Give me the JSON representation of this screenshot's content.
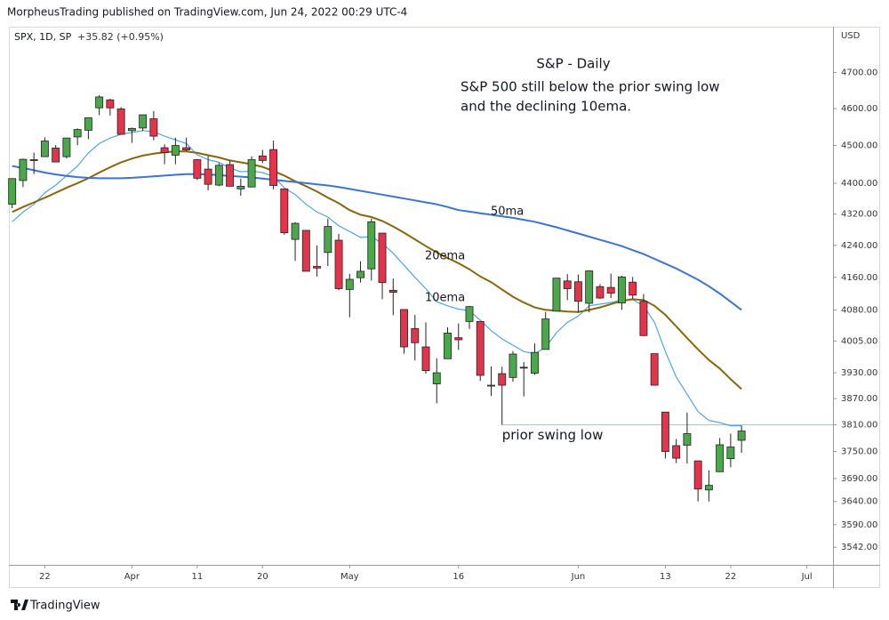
{
  "header": "MorpheusTrading published on TradingView.com, Jun 24, 2022 00:29 UTC-4",
  "footer": "TradingView",
  "chart_data": {
    "type": "candlestick",
    "title": "S&P - Daily",
    "annotations": [
      "S&P 500 still below the prior swing low",
      "and the declining 10ema."
    ],
    "legend": {
      "symbol": "SPX, 1D, SP",
      "change": "+35.82 (+0.95%)"
    },
    "currency": "USD",
    "x": [
      "Mar 17",
      "Mar 18",
      "Mar 21",
      "Mar 22",
      "Mar 23",
      "Mar 24",
      "Mar 25",
      "Mar 28",
      "Mar 29",
      "Mar 30",
      "Mar 31",
      "Apr 1",
      "Apr 4",
      "Apr 5",
      "Apr 6",
      "Apr 7",
      "Apr 8",
      "Apr 11",
      "Apr 12",
      "Apr 13",
      "Apr 14",
      "Apr 18",
      "Apr 19",
      "Apr 20",
      "Apr 21",
      "Apr 22",
      "Apr 25",
      "Apr 26",
      "Apr 27",
      "Apr 28",
      "Apr 29",
      "May 2",
      "May 3",
      "May 4",
      "May 5",
      "May 6",
      "May 9",
      "May 10",
      "May 11",
      "May 12",
      "May 13",
      "May 16",
      "May 17",
      "May 18",
      "May 19",
      "May 20",
      "May 23",
      "May 24",
      "May 25",
      "May 26",
      "May 27",
      "May 31",
      "Jun 1",
      "Jun 2",
      "Jun 3",
      "Jun 6",
      "Jun 7",
      "Jun 8",
      "Jun 9",
      "Jun 10",
      "Jun 13",
      "Jun 14",
      "Jun 15",
      "Jun 16",
      "Jun 17",
      "Jun 21",
      "Jun 22",
      "Jun 23"
    ],
    "open": [
      4345,
      4407,
      4462,
      4470,
      4493,
      4470,
      4523,
      4541,
      4602,
      4624,
      4599,
      4540,
      4547,
      4572,
      4494,
      4474,
      4494,
      4462,
      4437,
      4395,
      4449,
      4385,
      4390,
      4472,
      4489,
      4385,
      4255,
      4278,
      4187,
      4222,
      4253,
      4130,
      4159,
      4181,
      4271,
      4128,
      4081,
      4035,
      3991,
      3904,
      3963,
      4013,
      4052,
      4052,
      3899,
      3928,
      3919,
      3943,
      3929,
      3985,
      4077,
      4151,
      4149,
      4096,
      4137,
      4135,
      4097,
      4148,
      4101,
      3975,
      3839,
      3763,
      3764,
      3729,
      3665,
      3705,
      3734,
      3775
    ],
    "high": [
      4412,
      4465,
      4481,
      4522,
      4501,
      4520,
      4546,
      4575,
      4637,
      4627,
      4604,
      4548,
      4583,
      4593,
      4503,
      4521,
      4521,
      4464,
      4472,
      4453,
      4460,
      4412,
      4471,
      4488,
      4513,
      4385,
      4299,
      4278,
      4240,
      4308,
      4269,
      4169,
      4200,
      4308,
      4271,
      4157,
      4081,
      4068,
      4050,
      3964,
      4038,
      4047,
      4090,
      4052,
      3945,
      3944,
      3981,
      3955,
      3999,
      4075,
      4158,
      4168,
      4167,
      4177,
      4143,
      4169,
      4164,
      4161,
      4119,
      3975,
      3839,
      3778,
      3838,
      3729,
      3708,
      3780,
      3790,
      3808
    ],
    "low": [
      4335,
      4390,
      4424,
      4469,
      4455,
      4465,
      4501,
      4517,
      4582,
      4581,
      4530,
      4507,
      4539,
      4514,
      4450,
      4450,
      4485,
      4408,
      4381,
      4392,
      4392,
      4367,
      4390,
      4453,
      4384,
      4267,
      4201,
      4175,
      4162,
      4188,
      4128,
      4062,
      4147,
      4152,
      4106,
      4067,
      3975,
      3959,
      3928,
      3859,
      3963,
      3984,
      4034,
      3911,
      3876,
      3810,
      3909,
      3875,
      3925,
      3985,
      4077,
      4104,
      4073,
      4074,
      4107,
      4109,
      4080,
      4107,
      4017,
      3901,
      3734,
      3724,
      3723,
      3640,
      3640,
      3705,
      3715,
      3747
    ],
    "close": [
      4412,
      4463,
      4461,
      4512,
      4456,
      4520,
      4543,
      4575,
      4632,
      4602,
      4530,
      4546,
      4583,
      4525,
      4481,
      4500,
      4488,
      4413,
      4397,
      4447,
      4392,
      4392,
      4462,
      4460,
      4394,
      4272,
      4296,
      4175,
      4183,
      4288,
      4132,
      4155,
      4175,
      4300,
      4147,
      4123,
      3991,
      4001,
      3935,
      3930,
      4024,
      4008,
      4088,
      3924,
      3901,
      3901,
      3974,
      3941,
      3978,
      4058,
      4158,
      4132,
      4101,
      4176,
      4109,
      4121,
      4161,
      4116,
      4018,
      3901,
      3750,
      3735,
      3790,
      3667,
      3675,
      3765,
      3760,
      3796
    ],
    "up_color": "#4ca64c",
    "down_color": "#e5334b",
    "series": [
      {
        "name": "10ema",
        "color": "#4da6e8",
        "values": [
          4300,
          4325,
          4345,
          4375,
          4395,
          4420,
          4445,
          4480,
          4505,
          4520,
          4530,
          4535,
          4540,
          4537,
          4525,
          4515,
          4505,
          4475,
          4462,
          4455,
          4440,
          4430,
          4432,
          4428,
          4418,
          4388,
          4370,
          4345,
          4325,
          4312,
          4290,
          4275,
          4260,
          4262,
          4245,
          4220,
          4190,
          4160,
          4132,
          4100,
          4090,
          4082,
          4078,
          4055,
          4030,
          4010,
          3995,
          3980,
          3975,
          3990,
          4025,
          4050,
          4065,
          4090,
          4094,
          4098,
          4104,
          4105,
          4090,
          4050,
          3980,
          3920,
          3880,
          3840,
          3820,
          3815,
          3808,
          3808
        ]
      },
      {
        "name": "20ema",
        "color": "#8b6508",
        "values": [
          4325,
          4338,
          4350,
          4362,
          4375,
          4388,
          4400,
          4413,
          4428,
          4442,
          4455,
          4465,
          4473,
          4478,
          4482,
          4484,
          4484,
          4480,
          4474,
          4468,
          4460,
          4455,
          4450,
          4443,
          4432,
          4420,
          4405,
          4392,
          4378,
          4362,
          4348,
          4330,
          4318,
          4312,
          4302,
          4288,
          4272,
          4255,
          4238,
          4222,
          4208,
          4195,
          4180,
          4162,
          4148,
          4130,
          4112,
          4098,
          4086,
          4080,
          4078,
          4076,
          4075,
          4080,
          4086,
          4094,
          4102,
          4106,
          4104,
          4090,
          4068,
          4040,
          4012,
          3985,
          3960,
          3940,
          3915,
          3892
        ]
      },
      {
        "name": "50ma",
        "color": "#3b74d4",
        "values": [
          4445,
          4440,
          4434,
          4428,
          4423,
          4419,
          4416,
          4414,
          4413,
          4413,
          4413,
          4414,
          4416,
          4418,
          4420,
          4422,
          4424,
          4424,
          4423,
          4421,
          4419,
          4417,
          4415,
          4412,
          4409,
          4406,
          4403,
          4400,
          4397,
          4394,
          4390,
          4385,
          4380,
          4375,
          4370,
          4365,
          4360,
          4355,
          4350,
          4345,
          4338,
          4330,
          4326,
          4322,
          4318,
          4314,
          4310,
          4305,
          4300,
          4293,
          4286,
          4278,
          4270,
          4262,
          4254,
          4246,
          4238,
          4228,
          4218,
          4206,
          4194,
          4182,
          4168,
          4154,
          4138,
          4120,
          4100,
          4080
        ]
      }
    ],
    "hlines": [
      {
        "value": 3810,
        "label": "prior swing low",
        "from": 45,
        "color": "#8fd3e8"
      }
    ],
    "log": true,
    "grid": false,
    "xlim": [
      -0.3,
      75.4
    ],
    "xticks": [
      {
        "value": 3,
        "label": "22"
      },
      {
        "value": 11,
        "label": "Apr"
      },
      {
        "value": 17,
        "label": "11"
      },
      {
        "value": 23,
        "label": "20"
      },
      {
        "value": 31,
        "label": "May"
      },
      {
        "value": 41,
        "label": "16"
      },
      {
        "value": 52,
        "label": "Jun"
      },
      {
        "value": 60,
        "label": "13"
      },
      {
        "value": 66,
        "label": "22"
      },
      {
        "value": 73,
        "label": "Jul"
      }
    ],
    "ylim": [
      3505,
      4830
    ],
    "yticks": [
      {
        "value": 4700,
        "label": "4700.00"
      },
      {
        "value": 4600,
        "label": "4600.00"
      },
      {
        "value": 4500,
        "label": "4500.00"
      },
      {
        "value": 4400,
        "label": "4400.00"
      },
      {
        "value": 4320,
        "label": "4320.00"
      },
      {
        "value": 4240,
        "label": "4240.00"
      },
      {
        "value": 4160,
        "label": "4160.00"
      },
      {
        "value": 4080,
        "label": "4080.00"
      },
      {
        "value": 4005,
        "label": "4005.00"
      },
      {
        "value": 3930,
        "label": "3930.00"
      },
      {
        "value": 3870,
        "label": "3870.00"
      },
      {
        "value": 3810,
        "label": "3810.00"
      },
      {
        "value": 3750,
        "label": "3750.00"
      },
      {
        "value": 3690,
        "label": "3690.00"
      },
      {
        "value": 3640,
        "label": "3640.00"
      },
      {
        "value": 3590,
        "label": "3590.00"
      },
      {
        "value": 3542,
        "label": "3542.00"
      }
    ]
  }
}
